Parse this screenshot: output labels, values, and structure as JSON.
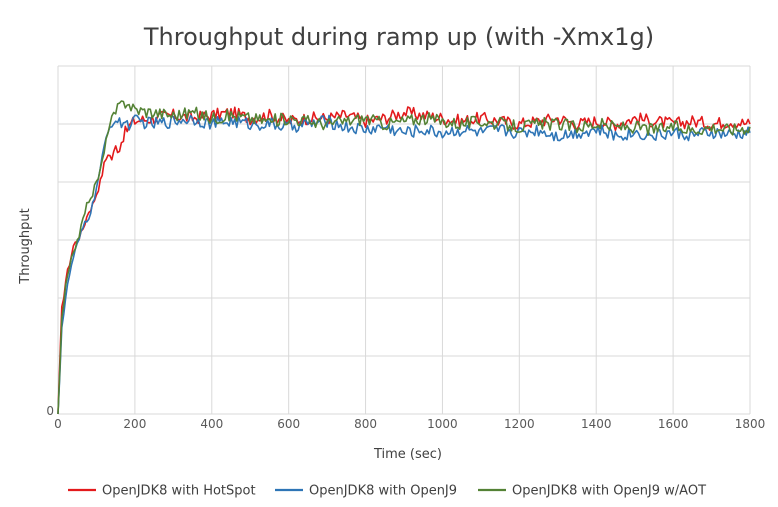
{
  "chart_data": {
    "type": "line",
    "title": "Throughput during ramp up (with -Xmx1g)",
    "xlabel": "Time (sec)",
    "ylabel": "Throughput",
    "xlim": [
      0,
      1800
    ],
    "ylim": [
      0,
      6
    ],
    "x_ticks": [
      "0",
      "200",
      "400",
      "600",
      "800",
      "1000",
      "1200",
      "1400",
      "1600",
      "1800"
    ],
    "y_tick_labels": [
      "0"
    ],
    "grid": true,
    "legend_position": "bottom",
    "series": [
      {
        "name": "OpenJDK8 with HotSpot",
        "color": "#e31a1c",
        "x": [
          0,
          10,
          20,
          30,
          40,
          50,
          60,
          70,
          80,
          90,
          100,
          110,
          120,
          130,
          140,
          150,
          160,
          170,
          180,
          190,
          200,
          250,
          300,
          350,
          400,
          450,
          500,
          550,
          600,
          650,
          700,
          750,
          800,
          850,
          900,
          950,
          1000,
          1050,
          1100,
          1150,
          1200,
          1250,
          1300,
          1350,
          1400,
          1450,
          1500,
          1550,
          1600,
          1650,
          1700,
          1750,
          1800
        ],
        "y": [
          0,
          1.8,
          2.3,
          2.6,
          2.9,
          3.0,
          3.1,
          3.3,
          3.5,
          3.6,
          3.8,
          4.0,
          4.3,
          4.5,
          4.4,
          4.6,
          4.6,
          4.8,
          4.9,
          5.0,
          5.05,
          5.1,
          5.15,
          5.1,
          5.15,
          5.2,
          5.1,
          5.15,
          5.05,
          5.1,
          5.1,
          5.15,
          5.05,
          5.1,
          5.2,
          5.15,
          5.1,
          5.05,
          5.1,
          5.05,
          5.0,
          5.05,
          5.1,
          5.0,
          5.05,
          5.0,
          5.1,
          5.05,
          5.0,
          5.05,
          5.0,
          5.05,
          5.0
        ]
      },
      {
        "name": "OpenJDK8 with OpenJ9",
        "color": "#2e75b6",
        "x": [
          0,
          10,
          20,
          30,
          40,
          50,
          60,
          70,
          80,
          90,
          100,
          110,
          120,
          130,
          140,
          150,
          160,
          170,
          180,
          190,
          200,
          250,
          300,
          350,
          400,
          450,
          500,
          550,
          600,
          650,
          700,
          750,
          800,
          850,
          900,
          950,
          1000,
          1050,
          1100,
          1150,
          1200,
          1250,
          1300,
          1350,
          1400,
          1450,
          1500,
          1550,
          1600,
          1650,
          1700,
          1750,
          1800
        ],
        "y": [
          0,
          1.5,
          2.0,
          2.4,
          2.7,
          2.9,
          3.1,
          3.3,
          3.4,
          3.6,
          3.9,
          4.2,
          4.6,
          4.9,
          5.0,
          5.05,
          5.0,
          5.05,
          5.0,
          5.0,
          5.05,
          5.0,
          5.05,
          5.1,
          5.0,
          5.05,
          5.0,
          5.0,
          4.95,
          5.0,
          5.05,
          4.95,
          4.9,
          4.95,
          4.85,
          4.9,
          4.85,
          4.9,
          4.85,
          4.9,
          4.85,
          4.9,
          4.8,
          4.85,
          4.9,
          4.8,
          4.85,
          4.8,
          4.85,
          4.8,
          4.85,
          4.8,
          4.85
        ]
      },
      {
        "name": "OpenJDK8 with OpenJ9 w/AOT",
        "color": "#548235",
        "x": [
          0,
          10,
          20,
          30,
          40,
          50,
          60,
          70,
          80,
          90,
          100,
          110,
          120,
          130,
          140,
          150,
          160,
          170,
          180,
          190,
          200,
          250,
          300,
          350,
          400,
          450,
          500,
          550,
          600,
          650,
          700,
          750,
          800,
          850,
          900,
          950,
          1000,
          1050,
          1100,
          1150,
          1200,
          1250,
          1300,
          1350,
          1400,
          1450,
          1500,
          1550,
          1600,
          1650,
          1700,
          1750,
          1800
        ],
        "y": [
          0,
          1.6,
          2.2,
          2.5,
          2.8,
          3.0,
          3.2,
          3.5,
          3.7,
          3.8,
          4.0,
          4.2,
          4.5,
          4.9,
          5.1,
          5.2,
          5.3,
          5.35,
          5.4,
          5.3,
          5.25,
          5.2,
          5.15,
          5.2,
          5.1,
          5.15,
          5.1,
          5.05,
          5.1,
          5.05,
          5.0,
          5.05,
          5.1,
          5.0,
          5.05,
          5.1,
          5.05,
          5.0,
          5.05,
          5.0,
          4.95,
          5.0,
          5.0,
          4.95,
          5.0,
          4.95,
          4.95,
          4.9,
          4.95,
          4.9,
          4.95,
          4.9,
          4.95
        ]
      }
    ]
  }
}
